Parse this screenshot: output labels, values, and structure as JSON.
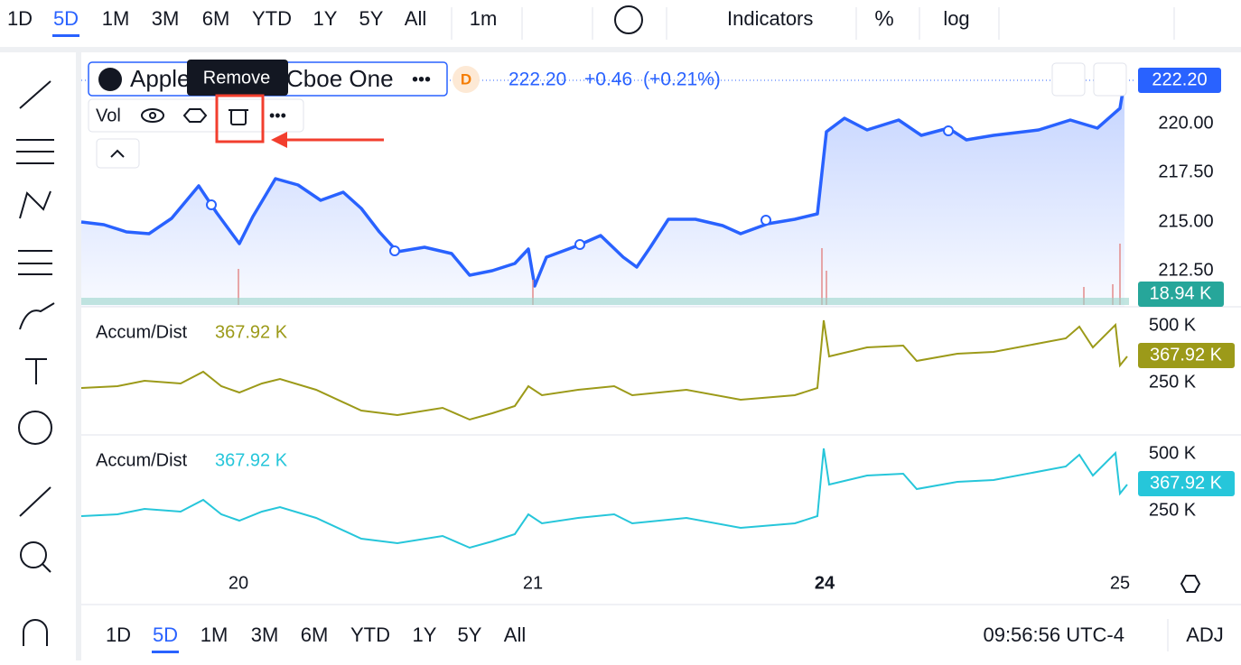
{
  "top_toolbar": {
    "ranges": [
      "1D",
      "5D",
      "1M",
      "3M",
      "6M",
      "YTD",
      "1Y",
      "5Y",
      "All"
    ],
    "interval": "1m",
    "indicators": "Indicators",
    "percent": "%",
    "log": "log"
  },
  "legend": {
    "symbol_start": "Apple",
    "symbol_end": "Cboe One",
    "tooltip": "Remove",
    "badge": "D",
    "price": "222.20",
    "change": "+0.46",
    "change_pct": "(+0.21%)",
    "volume_label": "Vol"
  },
  "price_axis": {
    "current": "222.20",
    "ticks": [
      "220.00",
      "217.50",
      "215.00",
      "212.50"
    ],
    "volume": "18.94 K"
  },
  "panes": [
    {
      "name": "Accum/Dist",
      "value": "367.92 K",
      "ticks": [
        "500 K",
        "250 K"
      ],
      "current": "367.92 K"
    },
    {
      "name": "Accum/Dist",
      "value": "367.92 K",
      "ticks": [
        "500 K",
        "250 K"
      ],
      "current": "367.92 K"
    }
  ],
  "time_axis": [
    "20",
    "21",
    "24",
    "25"
  ],
  "bottom_bar": {
    "ranges": [
      "1D",
      "5D",
      "1M",
      "3M",
      "6M",
      "YTD",
      "1Y",
      "5Y",
      "All"
    ],
    "clock": "09:56:56 UTC-4",
    "adj": "ADJ"
  }
}
